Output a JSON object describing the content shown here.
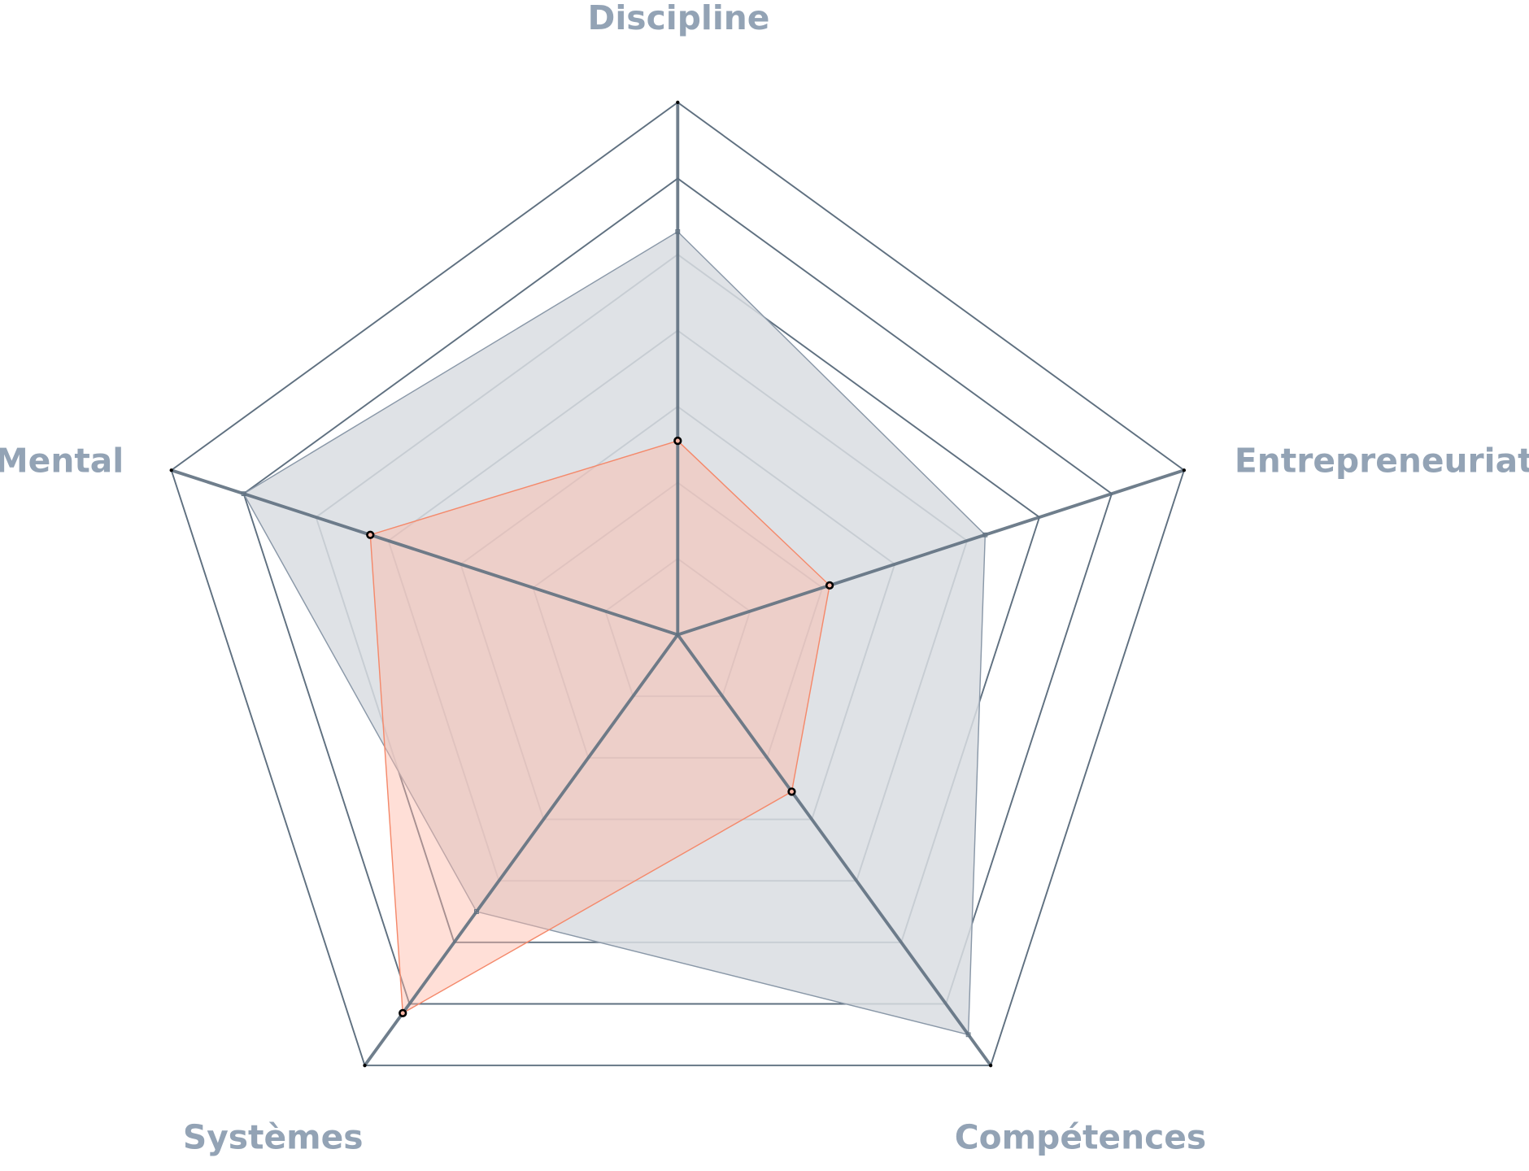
{
  "chart_data": {
    "type": "radar",
    "axes": [
      "Discipline",
      "Entrepreneuriat",
      "Compétences",
      "Systèmes",
      "Mental"
    ],
    "range": [
      0,
      7
    ],
    "rings": 7,
    "grid": true,
    "series": [
      {
        "values": [
          5.3,
          4.25,
          6.5,
          4.5,
          6.0
        ],
        "color": "#8a98a8",
        "fill": "#d9dde2"
      },
      {
        "values": [
          2.55,
          2.1,
          2.55,
          6.15,
          4.25
        ],
        "color": "#f4896b",
        "fill": "#ffb8a6"
      }
    ]
  },
  "colors": {
    "grid": "#5f7080",
    "label": "#93a3b5"
  }
}
